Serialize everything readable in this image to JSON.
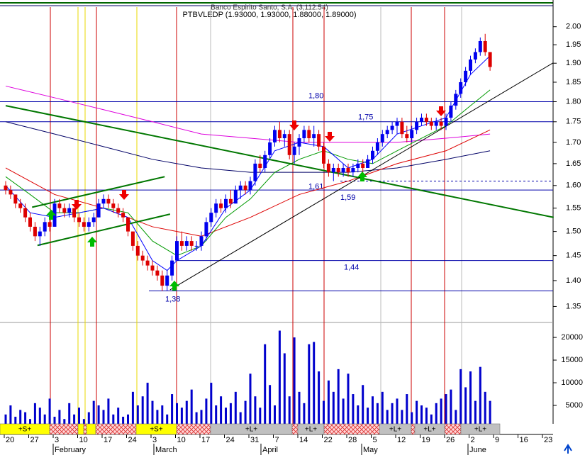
{
  "chart_data": {
    "type": "candlestick",
    "header": "Banco Espirito Santo, S.A. (3,112.54)",
    "title": "PTBVLEDP (1.93000, 1.93000, 1.88000, 1.89000)",
    "log_scale": true,
    "ylim": [
      1.32,
      2.06
    ],
    "yticks": [
      {
        "value": 2,
        "label": "2.00"
      },
      1.95,
      {
        "value": 1.9,
        "label": "1.90"
      },
      1.85,
      {
        "value": 1.8,
        "label": "1.80"
      },
      1.75,
      {
        "value": 1.7,
        "label": "1.70"
      },
      1.65,
      {
        "value": 1.6,
        "label": "1.60"
      },
      1.55,
      {
        "value": 1.5,
        "label": "1.50"
      },
      1.45,
      {
        "value": 1.4,
        "label": "1.40"
      },
      1.35
    ],
    "up_color": "#0000ee",
    "down_color": "#dd0000",
    "categories": [
      "20",
      null,
      null,
      null,
      null,
      "27",
      null,
      null,
      null,
      null,
      "3",
      null,
      null,
      null,
      null,
      "10",
      null,
      null,
      null,
      null,
      "17",
      null,
      null,
      null,
      null,
      "24",
      null,
      null,
      null,
      null,
      "3",
      null,
      null,
      null,
      null,
      "10",
      null,
      null,
      null,
      null,
      "17",
      null,
      null,
      null,
      null,
      "24",
      null,
      null,
      null,
      null,
      "31",
      null,
      null,
      null,
      null,
      "7",
      null,
      null,
      null,
      null,
      "14",
      null,
      null,
      null,
      null,
      "22",
      null,
      null,
      null,
      null,
      "28",
      null,
      null,
      null,
      null,
      "5",
      null,
      null,
      null,
      null,
      "12",
      null,
      null,
      null,
      null,
      "19",
      null,
      null,
      null,
      null,
      "26",
      null,
      null,
      null,
      null,
      "2",
      null,
      null,
      null,
      null,
      "9",
      null,
      null,
      null,
      null,
      "16",
      null,
      null,
      null,
      null,
      "23"
    ],
    "months": [
      "February",
      "March",
      "April",
      "May",
      "June"
    ],
    "open": [
      1.6,
      1.59,
      1.58,
      1.56,
      1.55,
      1.53,
      1.51,
      1.49,
      1.5,
      1.52,
      1.51,
      1.56,
      1.55,
      1.54,
      1.55,
      1.53,
      1.52,
      1.51,
      1.52,
      1.53,
      1.56,
      1.57,
      1.56,
      1.55,
      1.54,
      1.53,
      1.5,
      1.47,
      1.45,
      1.44,
      1.43,
      1.42,
      1.41,
      1.39,
      1.41,
      1.44,
      1.48,
      1.47,
      1.48,
      1.47,
      1.47,
      1.49,
      1.52,
      1.54,
      1.56,
      1.55,
      1.57,
      1.56,
      1.59,
      1.6,
      1.59,
      1.61,
      1.65,
      1.64,
      1.67,
      1.7,
      1.73,
      1.71,
      1.72,
      1.67,
      1.69,
      1.71,
      1.73,
      1.71,
      1.72,
      1.69,
      1.65,
      1.63,
      1.64,
      1.63,
      1.64,
      1.63,
      1.64,
      1.65,
      1.64,
      1.66,
      1.68,
      1.7,
      1.72,
      1.73,
      1.74,
      1.75,
      1.72,
      1.71,
      1.73,
      1.75,
      1.76,
      1.75,
      1.74,
      1.75,
      1.74,
      1.76,
      1.79,
      1.82,
      1.85,
      1.88,
      1.91,
      1.93,
      1.96,
      1.93,
      null,
      null,
      null,
      null,
      null,
      null,
      null,
      null,
      null,
      null,
      null
    ],
    "high": [
      1.61,
      1.6,
      1.58,
      1.57,
      1.56,
      1.54,
      1.52,
      1.51,
      1.53,
      1.54,
      1.57,
      1.57,
      1.56,
      1.56,
      1.55,
      1.54,
      1.53,
      1.53,
      1.54,
      1.57,
      1.58,
      1.58,
      1.57,
      1.56,
      1.55,
      1.53,
      1.5,
      1.48,
      1.46,
      1.45,
      1.44,
      1.43,
      1.42,
      1.42,
      1.45,
      1.49,
      1.5,
      1.49,
      1.49,
      1.48,
      1.5,
      1.53,
      1.55,
      1.57,
      1.57,
      1.58,
      1.59,
      1.6,
      1.61,
      1.61,
      1.62,
      1.66,
      1.67,
      1.68,
      1.71,
      1.74,
      1.75,
      1.73,
      1.73,
      1.7,
      1.72,
      1.74,
      1.74,
      1.74,
      1.73,
      1.7,
      1.66,
      1.65,
      1.65,
      1.65,
      1.65,
      1.65,
      1.66,
      1.66,
      1.67,
      1.69,
      1.71,
      1.73,
      1.74,
      1.75,
      1.76,
      1.76,
      1.74,
      1.74,
      1.76,
      1.77,
      1.77,
      1.76,
      1.76,
      1.76,
      1.77,
      1.8,
      1.83,
      1.86,
      1.89,
      1.92,
      1.94,
      1.97,
      1.98,
      1.93,
      null,
      null,
      null,
      null,
      null,
      null,
      null,
      null,
      null,
      null,
      null
    ],
    "low": [
      1.58,
      1.57,
      1.55,
      1.54,
      1.52,
      1.5,
      1.48,
      1.47,
      1.49,
      1.5,
      1.51,
      1.54,
      1.53,
      1.53,
      1.52,
      1.51,
      1.5,
      1.5,
      1.51,
      1.53,
      1.55,
      1.55,
      1.54,
      1.53,
      1.52,
      1.49,
      1.46,
      1.44,
      1.43,
      1.42,
      1.41,
      1.4,
      1.38,
      1.38,
      1.4,
      1.44,
      1.46,
      1.46,
      1.46,
      1.46,
      1.46,
      1.48,
      1.51,
      1.53,
      1.54,
      1.54,
      1.55,
      1.56,
      1.57,
      1.58,
      1.58,
      1.6,
      1.63,
      1.63,
      1.66,
      1.69,
      1.7,
      1.69,
      1.66,
      1.65,
      1.67,
      1.7,
      1.7,
      1.69,
      1.68,
      1.64,
      1.62,
      1.61,
      1.62,
      1.62,
      1.62,
      1.62,
      1.63,
      1.63,
      1.64,
      1.65,
      1.67,
      1.69,
      1.71,
      1.72,
      1.72,
      1.71,
      1.7,
      1.7,
      1.72,
      1.74,
      1.74,
      1.73,
      1.73,
      1.73,
      1.73,
      1.75,
      1.78,
      1.81,
      1.84,
      1.87,
      1.9,
      1.92,
      1.92,
      1.88,
      null,
      null,
      null,
      null,
      null,
      null,
      null,
      null,
      null,
      null,
      null
    ],
    "close": [
      1.59,
      1.58,
      1.56,
      1.55,
      1.53,
      1.51,
      1.49,
      1.5,
      1.52,
      1.51,
      1.56,
      1.55,
      1.54,
      1.55,
      1.53,
      1.52,
      1.51,
      1.52,
      1.53,
      1.56,
      1.57,
      1.56,
      1.55,
      1.54,
      1.53,
      1.5,
      1.47,
      1.45,
      1.44,
      1.43,
      1.42,
      1.41,
      1.39,
      1.41,
      1.44,
      1.48,
      1.47,
      1.48,
      1.47,
      1.47,
      1.49,
      1.52,
      1.54,
      1.56,
      1.55,
      1.57,
      1.56,
      1.59,
      1.6,
      1.59,
      1.61,
      1.65,
      1.64,
      1.67,
      1.7,
      1.73,
      1.71,
      1.72,
      1.67,
      1.69,
      1.71,
      1.73,
      1.71,
      1.72,
      1.69,
      1.65,
      1.63,
      1.64,
      1.63,
      1.64,
      1.63,
      1.64,
      1.65,
      1.64,
      1.66,
      1.68,
      1.7,
      1.72,
      1.73,
      1.74,
      1.75,
      1.72,
      1.71,
      1.73,
      1.75,
      1.76,
      1.75,
      1.74,
      1.75,
      1.74,
      1.76,
      1.79,
      1.82,
      1.85,
      1.88,
      1.91,
      1.93,
      1.96,
      1.93,
      1.89,
      null,
      null,
      null,
      null,
      null,
      null,
      null,
      null,
      null,
      null,
      null
    ],
    "volume": [
      3000,
      5000,
      2500,
      4000,
      3500,
      2000,
      5500,
      4500,
      3000,
      6500,
      2500,
      4000,
      2000,
      5500,
      3000,
      4500,
      2000,
      3500,
      6000,
      5000,
      4000,
      6500,
      3000,
      4500,
      2500,
      3000,
      8000,
      5000,
      7000,
      10000,
      6000,
      4000,
      5000,
      3000,
      7500,
      5500,
      4500,
      6000,
      8500,
      3500,
      4000,
      6500,
      10000,
      5000,
      7000,
      4500,
      5500,
      8000,
      3500,
      6000,
      12000,
      7000,
      4500,
      18500,
      9500,
      5000,
      21500,
      16500,
      7000,
      20000,
      8000,
      5500,
      18500,
      19000,
      12500,
      6000,
      10500,
      8000,
      13000,
      6500,
      12000,
      7500,
      5000,
      9500,
      4500,
      7000,
      5500,
      8000,
      4000,
      5500,
      6500,
      4000,
      7500,
      3500,
      6000,
      5000,
      4500,
      3000,
      5500,
      6500,
      7500,
      8500,
      4000,
      13000,
      9000,
      12500,
      6000,
      13500,
      8000,
      6000,
      null,
      null,
      null,
      null,
      null,
      null,
      null,
      null,
      null,
      null,
      null
    ],
    "volume_color": "#0000cc",
    "volume_ylim": [
      0,
      23300
    ],
    "volume_yticks": [
      5000,
      10000,
      15000,
      20000
    ],
    "overlays": [
      {
        "color": "#dd00dd",
        "x": [
          0,
          10,
          20,
          30,
          40,
          50,
          60,
          70,
          80,
          90,
          99
        ],
        "values": [
          1.84,
          1.81,
          1.78,
          1.75,
          1.72,
          1.71,
          1.7,
          1.7,
          1.7,
          1.71,
          1.72
        ]
      },
      {
        "color": "#000066",
        "x": [
          0,
          10,
          20,
          30,
          40,
          50,
          60,
          70,
          80,
          90,
          99
        ],
        "values": [
          1.75,
          1.72,
          1.69,
          1.66,
          1.64,
          1.63,
          1.63,
          1.63,
          1.64,
          1.66,
          1.68
        ]
      },
      {
        "color": "#dd0000",
        "x": [
          0,
          10,
          20,
          30,
          35,
          40,
          50,
          60,
          70,
          80,
          90,
          99
        ],
        "values": [
          1.64,
          1.58,
          1.55,
          1.51,
          1.5,
          1.49,
          1.53,
          1.58,
          1.61,
          1.65,
          1.68,
          1.73
        ]
      },
      {
        "color": "#009900",
        "x": [
          0,
          5,
          10,
          15,
          20,
          25,
          30,
          35,
          40,
          45,
          50,
          55,
          60,
          65,
          70,
          75,
          80,
          85,
          90,
          95,
          99
        ],
        "values": [
          1.62,
          1.58,
          1.54,
          1.54,
          1.55,
          1.54,
          1.48,
          1.45,
          1.47,
          1.53,
          1.57,
          1.63,
          1.66,
          1.68,
          1.66,
          1.65,
          1.68,
          1.71,
          1.74,
          1.79,
          1.83
        ]
      },
      {
        "color": "#0000ff",
        "x": [
          0,
          5,
          10,
          15,
          20,
          25,
          30,
          33,
          35,
          40,
          45,
          50,
          55,
          60,
          65,
          70,
          75,
          80,
          85,
          90,
          95,
          99
        ],
        "values": [
          1.6,
          1.54,
          1.53,
          1.54,
          1.55,
          1.53,
          1.44,
          1.42,
          1.44,
          1.47,
          1.55,
          1.59,
          1.68,
          1.7,
          1.69,
          1.64,
          1.66,
          1.72,
          1.74,
          1.76,
          1.87,
          1.92
        ]
      }
    ],
    "trendlines": [
      {
        "color": "#007700",
        "x": [
          0,
          112
        ],
        "values": [
          1.79,
          1.53
        ]
      },
      {
        "color": "#007700",
        "x": [
          5.4,
          32.5
        ],
        "values": [
          1.552,
          1.62
        ]
      },
      {
        "color": "#007700",
        "x": [
          6.5,
          33.6
        ],
        "values": [
          1.471,
          1.537
        ]
      },
      {
        "color": "#000000",
        "x": [
          33.6,
          111.9
        ],
        "values": [
          1.382,
          1.901
        ]
      }
    ],
    "levels": [
      {
        "value": 1.8,
        "label": "1,80"
      },
      {
        "value": 1.75,
        "label": "1,75"
      },
      {
        "value": 1.61,
        "label": "1,61"
      },
      {
        "value": 1.59,
        "label": "1,59"
      },
      {
        "value": 1.44,
        "label": "1,44"
      },
      {
        "value": 1.38,
        "label": "1,38"
      }
    ],
    "level_color": "#0000aa",
    "band": [
      "+S+",
      "+S+",
      "+L+",
      "+L+",
      "+L+",
      "+L+",
      "+L+"
    ]
  }
}
